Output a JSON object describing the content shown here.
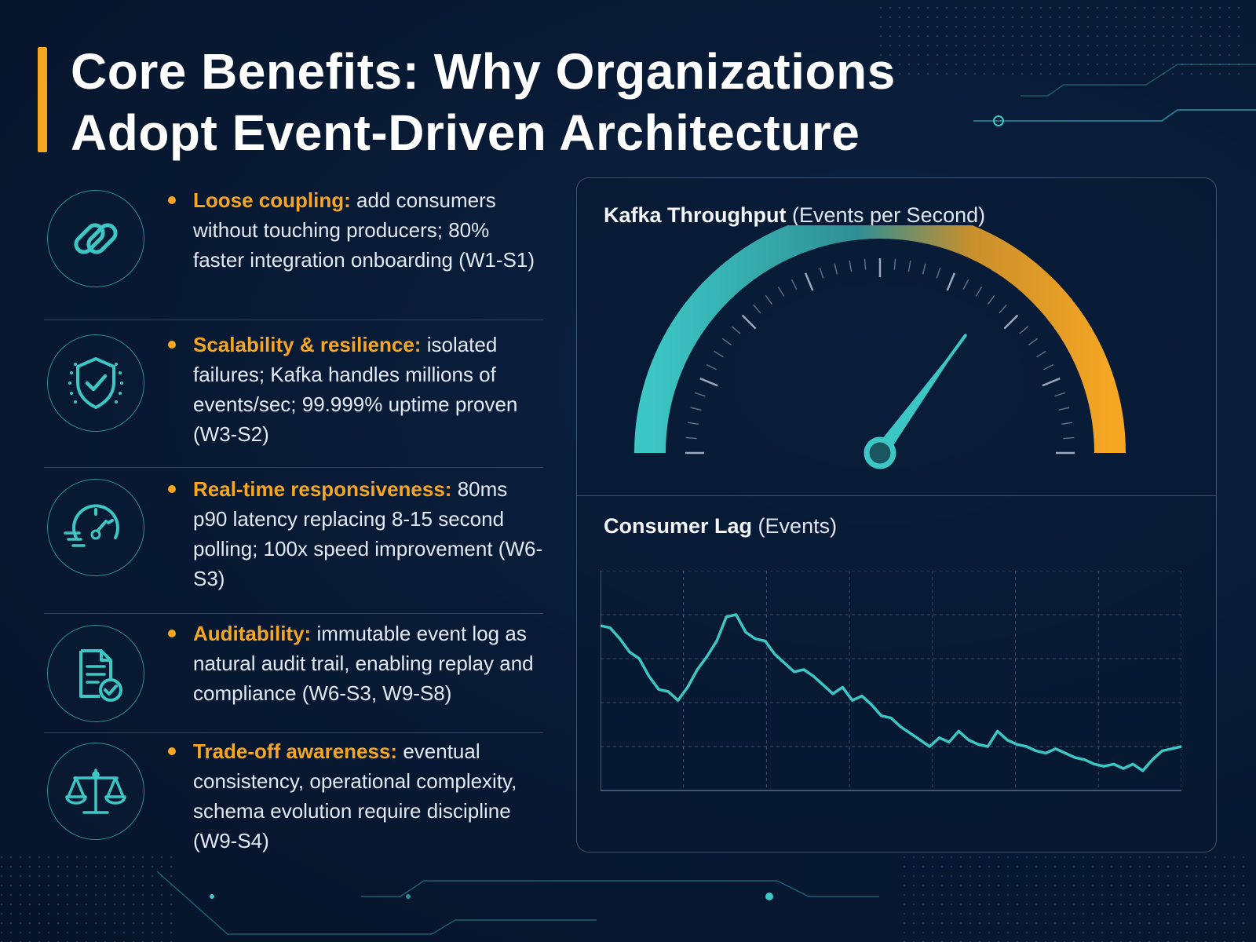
{
  "title": {
    "line1": "Core Benefits: Why Organizations",
    "line2": "Adopt Event-Driven Architecture"
  },
  "benefits": [
    {
      "icon": "link-icon",
      "label": "Loose coupling:",
      "text": "add consumers without touching producers; 80% faster integration onboarding (W1-S1)"
    },
    {
      "icon": "shield-check-icon",
      "label": "Scalability & resilience:",
      "text": "isolated failures; Kafka handles millions of events/sec; 99.999% uptime proven (W3-S2)"
    },
    {
      "icon": "speedometer-icon",
      "label": "Real-time responsiveness:",
      "text": "80ms p90 latency replacing 8-15 second polling; 100x speed improvement (W6-S3)"
    },
    {
      "icon": "document-check-icon",
      "label": "Auditability:",
      "text": "immutable event log as natural audit trail, enabling replay and compliance (W6-S3, W9-S8)"
    },
    {
      "icon": "scales-icon",
      "label": "Trade-off awareness:",
      "text": "eventual consistency, operational complexity, schema evolution require discipline (W9-S4)"
    }
  ],
  "colors": {
    "accent": "#f5a623",
    "teal": "#3cc6c4",
    "background": "#081a35"
  },
  "gauge": {
    "title_bold": "Kafka Throughput",
    "title_unit": "(Events per Second)",
    "level_fraction": 0.7
  },
  "lag": {
    "title_bold": "Consumer Lag",
    "title_unit": "(Events)"
  },
  "chart_data": {
    "type": "line",
    "title": "Consumer Lag (Events)",
    "xlabel": "",
    "ylabel": "",
    "grid": true,
    "ylim": [
      0,
      5
    ],
    "x": [
      0,
      1,
      2,
      3,
      4,
      5,
      6,
      7,
      8,
      9,
      10,
      11,
      12,
      13,
      14,
      15,
      16,
      17,
      18,
      19,
      20,
      21,
      22,
      23,
      24,
      25,
      26,
      27,
      28,
      29,
      30,
      31,
      32,
      33,
      34,
      35,
      36,
      37,
      38,
      39,
      40,
      41,
      42,
      43,
      44,
      45,
      46,
      47,
      48,
      49,
      50,
      51,
      52,
      53,
      54,
      55,
      56,
      57,
      58,
      59,
      60
    ],
    "series": [
      {
        "values": [
          3.75,
          3.7,
          3.45,
          3.15,
          3.0,
          2.6,
          2.3,
          2.25,
          2.05,
          2.35,
          2.75,
          3.05,
          3.4,
          3.95,
          4.0,
          3.6,
          3.45,
          3.4,
          3.1,
          2.9,
          2.7,
          2.75,
          2.6,
          2.4,
          2.2,
          2.35,
          2.05,
          2.15,
          1.95,
          1.7,
          1.65,
          1.45,
          1.3,
          1.15,
          1.0,
          1.2,
          1.1,
          1.35,
          1.15,
          1.05,
          1.0,
          1.35,
          1.15,
          1.05,
          1.0,
          0.9,
          0.85,
          0.95,
          0.85,
          0.75,
          0.7,
          0.6,
          0.55,
          0.6,
          0.5,
          0.6,
          0.45,
          0.7,
          0.9,
          0.95,
          1.0
        ]
      }
    ]
  }
}
